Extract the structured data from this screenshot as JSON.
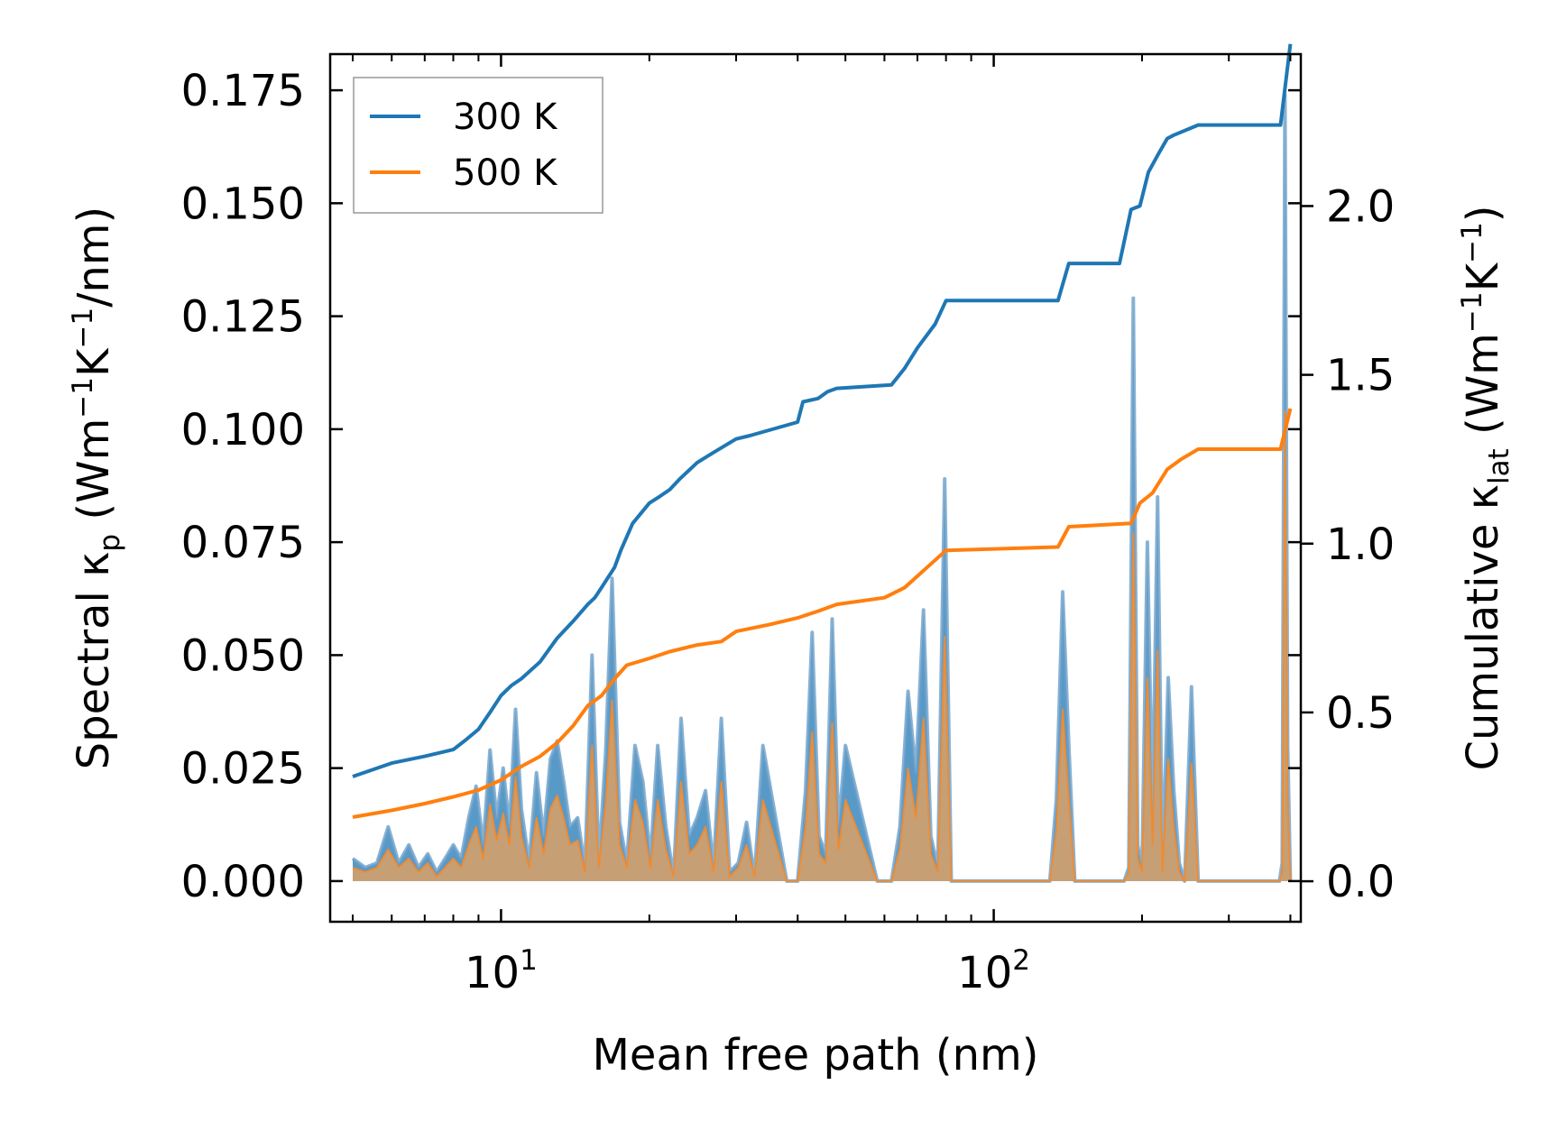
{
  "chart_data": {
    "type": "line",
    "x_scale": "log",
    "xlim": [
      4.5,
      420
    ],
    "xlabel": "Mean free path (nm)",
    "x_tick_labels": [
      {
        "value": 10,
        "base": "10",
        "exp": "1"
      },
      {
        "value": 100,
        "base": "10",
        "exp": "2"
      }
    ],
    "left_axis": {
      "label_parts": {
        "prefix": "Spectral κ",
        "sub": "p",
        "unit_open": " (Wm",
        "sup1": "−1",
        "k": "K",
        "sup2": "−1",
        "unit_close": "/nm)"
      },
      "ylim": [
        -0.009,
        0.183
      ],
      "ticks": [
        0.0,
        0.025,
        0.05,
        0.075,
        0.1,
        0.125,
        0.15,
        0.175
      ],
      "tick_labels": [
        "0.000",
        "0.025",
        "0.050",
        "0.075",
        "0.100",
        "0.125",
        "0.150",
        "0.175"
      ]
    },
    "right_axis": {
      "label_parts": {
        "prefix": "Cumulative κ",
        "sub": "lat",
        "unit_open": " (Wm",
        "sup1": "−1",
        "k": "K",
        "sup2": "−1",
        "unit_close": ")"
      },
      "ylim": [
        -0.12,
        2.45
      ],
      "ticks": [
        0.0,
        0.5,
        1.0,
        1.5,
        2.0
      ],
      "tick_labels": [
        "0.0",
        "0.5",
        "1.0",
        "1.5",
        "2.0"
      ]
    },
    "legend": {
      "position": "top-left",
      "entries": [
        "300 K",
        "500 K"
      ]
    },
    "colors": {
      "300K": "#1f77b4",
      "500K": "#ff7f0e",
      "fill_300K": "#1f77b4",
      "fill_500K": "#d9a066"
    },
    "series": [
      {
        "name": "300 K",
        "axis": "right",
        "kind": "cumulative",
        "x": [
          5.0,
          6.0,
          7.0,
          8.0,
          8.5,
          9.0,
          9.5,
          10.0,
          10.5,
          11.0,
          12.0,
          13.0,
          14.0,
          15.0,
          15.5,
          16.0,
          17.0,
          17.5,
          18.5,
          20.0,
          21.0,
          22.0,
          23.0,
          25.0,
          27.0,
          30.0,
          32.0,
          40.0,
          41.0,
          44.0,
          46.0,
          48.0,
          62.0,
          66.0,
          70.0,
          76.0,
          80.0,
          135.0,
          142.0,
          180.0,
          190.0,
          198.0,
          206.0,
          215.0,
          225.0,
          232.0,
          260.0,
          382.0,
          400.0
        ],
        "y": [
          0.31,
          0.35,
          0.37,
          0.39,
          0.42,
          0.45,
          0.5,
          0.55,
          0.58,
          0.6,
          0.65,
          0.72,
          0.77,
          0.82,
          0.84,
          0.87,
          0.93,
          0.98,
          1.06,
          1.12,
          1.14,
          1.16,
          1.19,
          1.24,
          1.27,
          1.31,
          1.32,
          1.36,
          1.42,
          1.43,
          1.45,
          1.46,
          1.47,
          1.52,
          1.58,
          1.65,
          1.72,
          1.72,
          1.83,
          1.83,
          1.99,
          2.0,
          2.1,
          2.15,
          2.2,
          2.21,
          2.24,
          2.24,
          2.48
        ]
      },
      {
        "name": "500 K",
        "axis": "right",
        "kind": "cumulative",
        "x": [
          5.0,
          6.0,
          7.0,
          8.0,
          9.0,
          10.0,
          11.0,
          12.0,
          13.0,
          14.0,
          15.0,
          16.0,
          17.0,
          18.0,
          20.0,
          22.0,
          25.0,
          28.0,
          30.0,
          35.0,
          40.0,
          44.0,
          48.0,
          60.0,
          66.0,
          72.0,
          80.0,
          135.0,
          142.0,
          190.0,
          198.0,
          210.0,
          225.0,
          240.0,
          260.0,
          382.0,
          400.0
        ],
        "y": [
          0.19,
          0.21,
          0.23,
          0.25,
          0.27,
          0.3,
          0.34,
          0.37,
          0.41,
          0.46,
          0.52,
          0.55,
          0.6,
          0.64,
          0.66,
          0.68,
          0.7,
          0.71,
          0.74,
          0.76,
          0.78,
          0.8,
          0.82,
          0.84,
          0.87,
          0.92,
          0.98,
          0.99,
          1.05,
          1.06,
          1.12,
          1.15,
          1.22,
          1.25,
          1.28,
          1.28,
          1.4
        ]
      },
      {
        "name": "300 K spectral",
        "axis": "left",
        "kind": "spectral",
        "x": [
          5.0,
          5.3,
          5.6,
          5.9,
          6.2,
          6.5,
          6.8,
          7.1,
          7.4,
          7.7,
          8.0,
          8.3,
          8.6,
          8.9,
          9.2,
          9.5,
          9.8,
          10.1,
          10.4,
          10.7,
          11.0,
          11.4,
          11.8,
          12.2,
          12.6,
          13.0,
          13.4,
          13.8,
          14.3,
          14.8,
          15.3,
          15.8,
          16.3,
          16.8,
          17.4,
          18.0,
          18.7,
          19.4,
          20.1,
          20.8,
          21.6,
          22.4,
          23.2,
          24.1,
          25.0,
          26.0,
          27.0,
          28.0,
          29.1,
          30.3,
          31.5,
          32.7,
          34.0,
          38.0,
          40.0,
          41.5,
          42.8,
          44.2,
          45.6,
          47.0,
          48.4,
          50.0,
          58.0,
          62.0,
          64.5,
          67.0,
          69.5,
          72.0,
          74.5,
          77.0,
          79.5,
          82.0,
          130.0,
          134.0,
          138.0,
          142.0,
          146.0,
          184.0,
          188.0,
          192.0,
          196.0,
          200.0,
          205.0,
          210.0,
          215.0,
          220.0,
          226.0,
          232.0,
          238.0,
          244.0,
          252.0,
          260.0,
          270.0,
          380.0,
          385.0,
          390.0,
          395.0,
          400.0
        ],
        "y": [
          0.005,
          0.003,
          0.004,
          0.012,
          0.004,
          0.008,
          0.003,
          0.006,
          0.002,
          0.005,
          0.008,
          0.005,
          0.014,
          0.021,
          0.008,
          0.029,
          0.014,
          0.025,
          0.012,
          0.038,
          0.016,
          0.004,
          0.024,
          0.01,
          0.027,
          0.031,
          0.022,
          0.012,
          0.014,
          0.003,
          0.05,
          0.004,
          0.028,
          0.067,
          0.013,
          0.004,
          0.03,
          0.022,
          0.005,
          0.03,
          0.012,
          0.001,
          0.036,
          0.01,
          0.014,
          0.02,
          0.003,
          0.036,
          0.002,
          0.004,
          0.013,
          0.001,
          0.03,
          0.0,
          0.0,
          0.02,
          0.055,
          0.01,
          0.006,
          0.058,
          0.012,
          0.03,
          0.0,
          0.0,
          0.012,
          0.042,
          0.024,
          0.06,
          0.01,
          0.003,
          0.089,
          0.0,
          0.0,
          0.018,
          0.064,
          0.03,
          0.0,
          0.0,
          0.003,
          0.129,
          0.008,
          0.003,
          0.075,
          0.014,
          0.085,
          0.003,
          0.045,
          0.02,
          0.004,
          0.0,
          0.043,
          0.0,
          0.0,
          0.0,
          0.004,
          0.174,
          0.03,
          0.0
        ]
      },
      {
        "name": "500 K spectral",
        "axis": "left",
        "kind": "spectral",
        "x": [
          5.0,
          5.3,
          5.6,
          5.9,
          6.2,
          6.5,
          6.8,
          7.1,
          7.4,
          7.7,
          8.0,
          8.3,
          8.6,
          8.9,
          9.2,
          9.5,
          9.8,
          10.1,
          10.4,
          10.7,
          11.0,
          11.4,
          11.8,
          12.2,
          12.6,
          13.0,
          13.4,
          13.8,
          14.3,
          14.8,
          15.3,
          15.8,
          16.3,
          16.8,
          17.4,
          18.0,
          18.7,
          19.4,
          20.1,
          20.8,
          21.6,
          22.4,
          23.2,
          24.1,
          25.0,
          26.0,
          27.0,
          28.0,
          29.1,
          30.3,
          31.5,
          32.7,
          34.0,
          38.0,
          40.0,
          41.5,
          42.8,
          44.2,
          45.6,
          47.0,
          48.4,
          50.0,
          58.0,
          62.0,
          64.5,
          67.0,
          69.5,
          72.0,
          74.5,
          77.0,
          79.5,
          82.0,
          130.0,
          134.0,
          138.0,
          142.0,
          146.0,
          184.0,
          188.0,
          192.0,
          196.0,
          200.0,
          205.0,
          210.0,
          215.0,
          220.0,
          226.0,
          232.0,
          238.0,
          244.0,
          252.0,
          260.0,
          270.0,
          380.0,
          385.0,
          390.0,
          395.0,
          400.0
        ],
        "y": [
          0.003,
          0.002,
          0.003,
          0.007,
          0.003,
          0.005,
          0.002,
          0.004,
          0.001,
          0.003,
          0.005,
          0.003,
          0.008,
          0.012,
          0.005,
          0.017,
          0.009,
          0.015,
          0.008,
          0.023,
          0.01,
          0.003,
          0.014,
          0.006,
          0.016,
          0.019,
          0.014,
          0.008,
          0.009,
          0.002,
          0.03,
          0.003,
          0.017,
          0.04,
          0.008,
          0.003,
          0.018,
          0.013,
          0.003,
          0.018,
          0.007,
          0.001,
          0.022,
          0.006,
          0.008,
          0.012,
          0.002,
          0.022,
          0.001,
          0.003,
          0.008,
          0.001,
          0.018,
          0.0,
          0.0,
          0.012,
          0.033,
          0.006,
          0.004,
          0.035,
          0.007,
          0.018,
          0.0,
          0.0,
          0.007,
          0.025,
          0.014,
          0.036,
          0.006,
          0.002,
          0.054,
          0.0,
          0.0,
          0.011,
          0.038,
          0.018,
          0.0,
          0.0,
          0.002,
          0.077,
          0.005,
          0.002,
          0.045,
          0.008,
          0.051,
          0.002,
          0.027,
          0.012,
          0.002,
          0.0,
          0.026,
          0.0,
          0.0,
          0.0,
          0.002,
          0.104,
          0.018,
          0.0
        ]
      }
    ]
  }
}
